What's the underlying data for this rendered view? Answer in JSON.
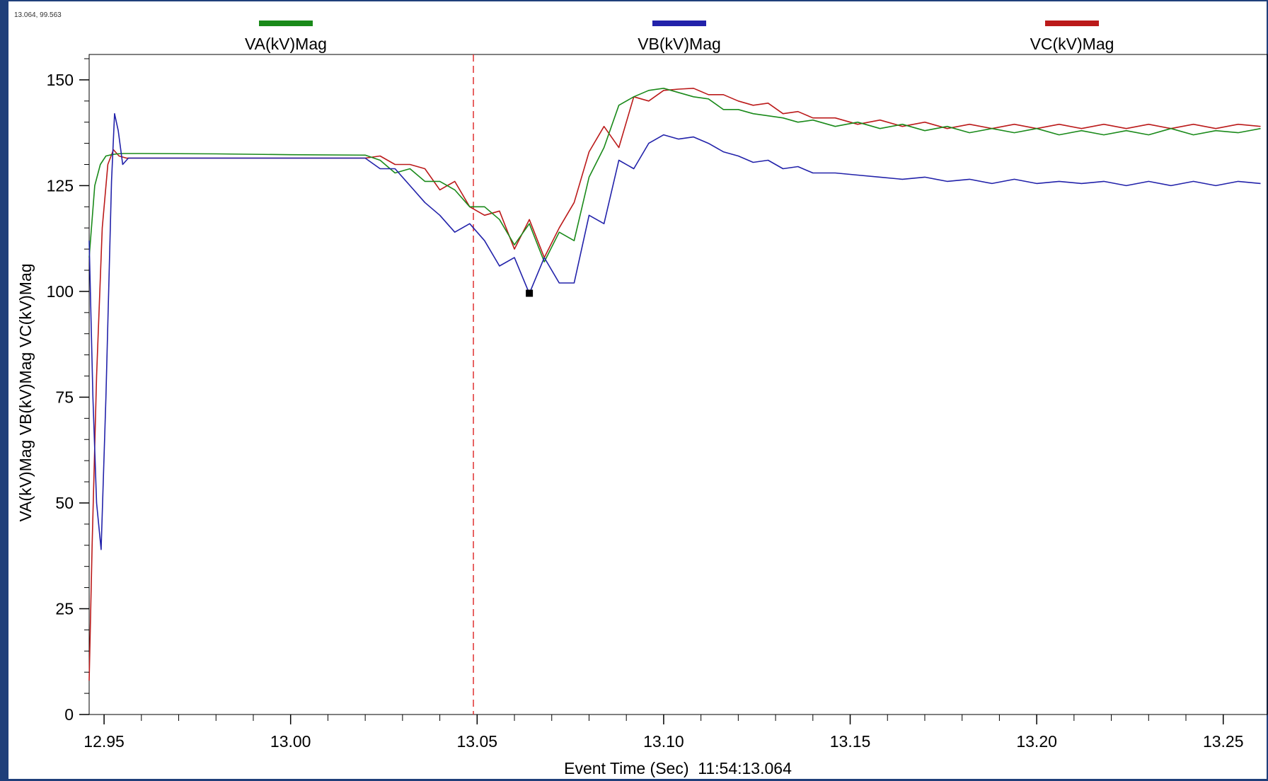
{
  "cursor_readout": "13.064, 99.563",
  "chart_data": {
    "type": "line",
    "title": "",
    "xlabel": "Event Time (Sec)  11:54:13.064",
    "ylabel": "VA(kV)Mag VB(kV)Mag VC(kV)Mag",
    "xlim": [
      12.946,
      13.262
    ],
    "ylim": [
      0,
      156
    ],
    "x_ticks": [
      "12.95",
      "13.00",
      "13.05",
      "13.10",
      "13.15",
      "13.20",
      "13.25"
    ],
    "x_tick_values": [
      12.95,
      13.0,
      13.05,
      13.1,
      13.15,
      13.2,
      13.25
    ],
    "y_ticks": [
      "0",
      "25",
      "50",
      "75",
      "100",
      "125",
      "150"
    ],
    "y_tick_values": [
      0,
      25,
      50,
      75,
      100,
      125,
      150
    ],
    "cursor_x": 13.049,
    "marker": {
      "x": 13.064,
      "y": 99.563
    },
    "legend_position": "top",
    "series": [
      {
        "name": "VA(kV)Mag",
        "color": "#1a8a1a",
        "x": [
          12.946,
          12.9475,
          12.949,
          12.9505,
          12.952,
          12.9535,
          12.955,
          12.96,
          12.98,
          13.0,
          13.02,
          13.024,
          13.028,
          13.032,
          13.036,
          13.04,
          13.044,
          13.048,
          13.052,
          13.056,
          13.06,
          13.064,
          13.068,
          13.072,
          13.076,
          13.08,
          13.084,
          13.088,
          13.092,
          13.096,
          13.1,
          13.104,
          13.108,
          13.112,
          13.116,
          13.12,
          13.124,
          13.128,
          13.132,
          13.136,
          13.14,
          13.146,
          13.152,
          13.158,
          13.164,
          13.17,
          13.176,
          13.182,
          13.188,
          13.194,
          13.2,
          13.206,
          13.212,
          13.218,
          13.224,
          13.23,
          13.236,
          13.242,
          13.248,
          13.254,
          13.26
        ],
        "y": [
          108,
          125,
          130,
          132,
          132.3,
          132.5,
          132.6,
          132.6,
          132.5,
          132.3,
          132.2,
          131,
          128,
          129,
          126,
          126,
          124,
          120,
          120,
          117,
          111,
          116,
          107,
          114,
          112,
          127,
          134,
          144,
          146,
          147.5,
          148,
          147,
          146,
          145.5,
          143,
          143,
          142,
          141.5,
          141,
          140,
          140.5,
          139,
          140,
          138.5,
          139.5,
          138,
          139,
          137.5,
          138.5,
          137.5,
          138.5,
          137,
          138,
          137,
          138,
          137,
          138.5,
          137,
          138,
          137.5,
          138.5
        ]
      },
      {
        "name": "VB(kV)Mag",
        "color": "#2222aa",
        "x": [
          12.946,
          12.947,
          12.948,
          12.9492,
          12.9505,
          12.952,
          12.9528,
          12.9538,
          12.955,
          12.9565,
          12.96,
          12.98,
          13.0,
          13.02,
          13.024,
          13.028,
          13.032,
          13.036,
          13.04,
          13.044,
          13.048,
          13.052,
          13.056,
          13.06,
          13.064,
          13.068,
          13.072,
          13.076,
          13.08,
          13.084,
          13.088,
          13.092,
          13.096,
          13.1,
          13.104,
          13.108,
          13.112,
          13.116,
          13.12,
          13.124,
          13.128,
          13.132,
          13.136,
          13.14,
          13.146,
          13.152,
          13.158,
          13.164,
          13.17,
          13.176,
          13.182,
          13.188,
          13.194,
          13.2,
          13.206,
          13.212,
          13.218,
          13.224,
          13.23,
          13.236,
          13.242,
          13.248,
          13.254,
          13.26
        ],
        "y": [
          112,
          75,
          50,
          39,
          75,
          126,
          142,
          138,
          130,
          131.5,
          131.5,
          131.5,
          131.5,
          131.5,
          129,
          129,
          125,
          121,
          118,
          114,
          116,
          112,
          106,
          108,
          99.5,
          108,
          102,
          102,
          118,
          116,
          131,
          129,
          135,
          137,
          136,
          136.5,
          135,
          133,
          132,
          130.5,
          131,
          129,
          129.5,
          128,
          128,
          127.5,
          127,
          126.5,
          127,
          126,
          126.5,
          125.5,
          126.5,
          125.5,
          126,
          125.5,
          126,
          125,
          126,
          125,
          126,
          125,
          126,
          125.5
        ]
      },
      {
        "name": "VC(kV)Mag",
        "color": "#bb1a1a",
        "x": [
          12.946,
          12.9468,
          12.948,
          12.9495,
          12.951,
          12.9525,
          12.954,
          12.956,
          12.96,
          12.98,
          13.0,
          13.02,
          13.024,
          13.028,
          13.032,
          13.036,
          13.04,
          13.044,
          13.048,
          13.052,
          13.056,
          13.06,
          13.064,
          13.068,
          13.072,
          13.076,
          13.08,
          13.084,
          13.088,
          13.092,
          13.096,
          13.1,
          13.104,
          13.108,
          13.112,
          13.116,
          13.12,
          13.124,
          13.128,
          13.132,
          13.136,
          13.14,
          13.146,
          13.152,
          13.158,
          13.164,
          13.17,
          13.176,
          13.182,
          13.188,
          13.194,
          13.2,
          13.206,
          13.212,
          13.218,
          13.224,
          13.23,
          13.236,
          13.242,
          13.248,
          13.254,
          13.26
        ],
        "y": [
          8,
          40,
          80,
          115,
          130,
          133.5,
          132,
          131.5,
          131.5,
          131.5,
          131.5,
          131.5,
          132,
          130,
          130,
          129,
          124,
          126,
          120,
          118,
          119,
          110,
          117,
          108,
          115,
          121,
          133,
          139,
          134,
          146,
          145,
          147.5,
          147.8,
          148,
          146.5,
          146.5,
          145,
          144,
          144.5,
          142,
          142.5,
          141,
          141,
          139.5,
          140.5,
          139,
          140,
          138.5,
          139.5,
          138.5,
          139.5,
          138.5,
          139.5,
          138.5,
          139.5,
          138.5,
          139.5,
          138.5,
          139.5,
          138.5,
          139.5,
          139
        ]
      }
    ]
  }
}
